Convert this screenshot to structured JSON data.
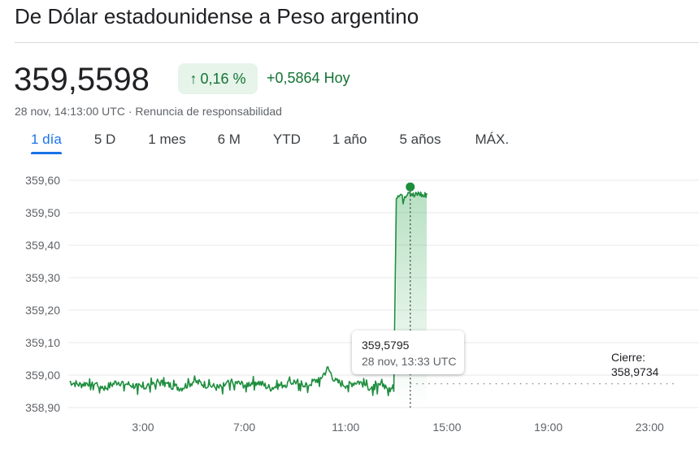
{
  "header": {
    "title": "De Dólar estadounidense a Peso argentino",
    "price": "359,5598",
    "change_pct": "0,16 %",
    "change_arrow": "↑",
    "change_abs": "+0,5864 Hoy",
    "timestamp": "28 nov, 14:13:00 UTC",
    "separator": " · ",
    "disclaimer": "Renuncia de responsabilidad"
  },
  "tabs": [
    {
      "label": "1 día",
      "active": true
    },
    {
      "label": "5 D",
      "active": false
    },
    {
      "label": "1 mes",
      "active": false
    },
    {
      "label": "6 M",
      "active": false
    },
    {
      "label": "YTD",
      "active": false
    },
    {
      "label": "1 año",
      "active": false
    },
    {
      "label": "5 años",
      "active": false
    },
    {
      "label": "MÁX.",
      "active": false
    }
  ],
  "tooltip": {
    "value": "359,5795",
    "date": "28 nov, 13:33 UTC"
  },
  "close": {
    "label": "Cierre:",
    "value": "358,9734"
  },
  "colors": {
    "positive": "#137333",
    "line": "#1e8e3e",
    "accent": "#1a73e8"
  },
  "chart_data": {
    "type": "line",
    "xlabel": "",
    "ylabel": "",
    "x_ticks": [
      "3:00",
      "7:00",
      "11:00",
      "15:00",
      "19:00",
      "23:00"
    ],
    "x_tick_hours": [
      3,
      7,
      11,
      15,
      19,
      23
    ],
    "y_ticks": [
      "359,60",
      "359,50",
      "359,40",
      "359,30",
      "359,20",
      "359,10",
      "359,00",
      "358,90"
    ],
    "y_tick_values": [
      359.6,
      359.5,
      359.4,
      359.3,
      359.2,
      359.1,
      359.0,
      358.9
    ],
    "xlim_hours": [
      0.05,
      24.05
    ],
    "ylim": [
      358.9,
      359.6
    ],
    "grid": true,
    "previous_close": 358.9734,
    "selected_point": {
      "hour": 13.55,
      "value": 359.5795
    },
    "series": [
      {
        "x_hours": [
          0.1,
          0.5,
          1.0,
          1.5,
          2.0,
          2.5,
          3.0,
          3.5,
          4.0,
          4.5,
          5.0,
          5.5,
          6.0,
          6.5,
          7.0,
          7.5,
          8.0,
          8.5,
          9.0,
          9.5,
          10.0,
          10.3,
          10.6,
          11.0,
          11.5,
          12.0,
          12.5,
          12.9,
          13.0,
          13.1,
          13.3,
          13.5,
          13.7,
          13.9,
          14.1,
          14.2
        ],
        "values": [
          358.98,
          358.97,
          358.98,
          358.96,
          358.98,
          358.97,
          358.96,
          358.98,
          358.97,
          358.96,
          358.98,
          358.97,
          358.96,
          358.98,
          358.97,
          358.98,
          358.96,
          358.97,
          358.98,
          358.97,
          358.99,
          359.02,
          358.98,
          358.97,
          358.98,
          358.96,
          358.97,
          358.95,
          359.55,
          359.56,
          359.55,
          359.57,
          359.55,
          359.56,
          359.55,
          359.56
        ]
      }
    ]
  }
}
